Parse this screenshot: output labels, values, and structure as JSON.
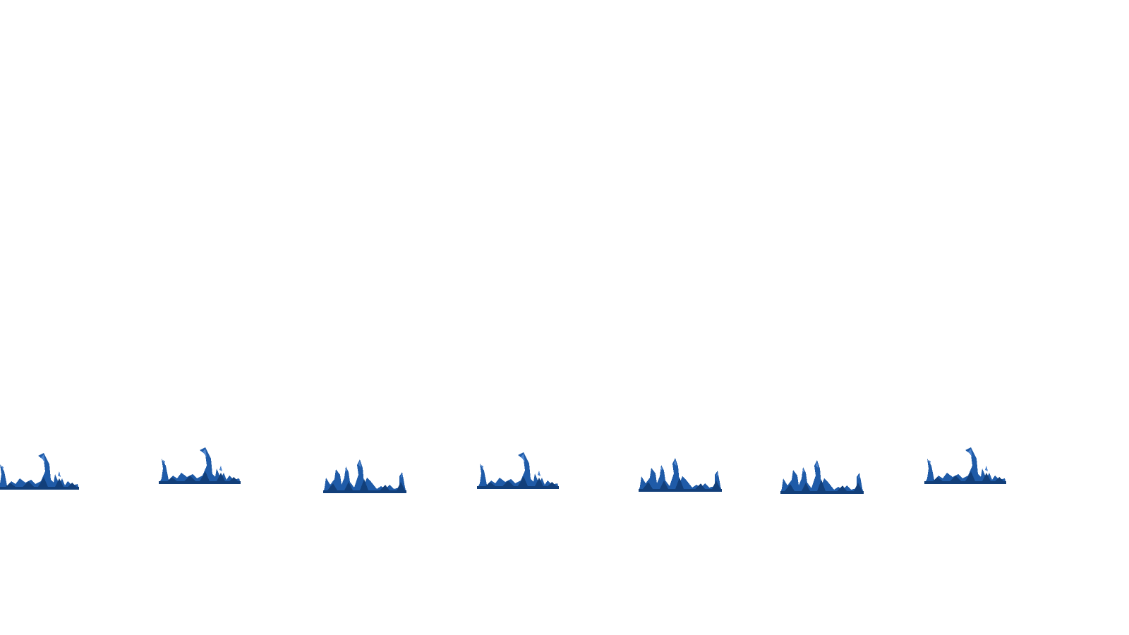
{
  "scene": {
    "background": "#ffffff",
    "tuft_count": 7,
    "colors": {
      "tuft_body": "#1f5ba8",
      "tuft_dark": "#123f7a",
      "tuft_light": "#4f86cf"
    },
    "tufts": [
      {
        "variant": "a",
        "icon": "blue-grass-tuft-icon"
      },
      {
        "variant": "a",
        "icon": "blue-grass-tuft-icon"
      },
      {
        "variant": "b",
        "icon": "blue-grass-tuft-icon"
      },
      {
        "variant": "a",
        "icon": "blue-grass-tuft-icon"
      },
      {
        "variant": "b",
        "icon": "blue-grass-tuft-icon"
      },
      {
        "variant": "b",
        "icon": "blue-grass-tuft-icon"
      },
      {
        "variant": "a",
        "icon": "blue-grass-tuft-icon"
      }
    ]
  }
}
